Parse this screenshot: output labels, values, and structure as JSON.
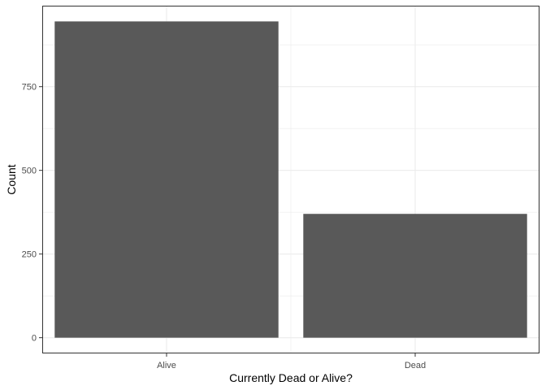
{
  "chart_data": {
    "type": "bar",
    "categories": [
      "Alive",
      "Dead"
    ],
    "values": [
      945,
      370
    ],
    "title": "",
    "xlabel": "Currently Dead or Alive?",
    "ylabel": "Count",
    "ylim": [
      -47,
      992
    ],
    "yticks": [
      0,
      250,
      500,
      750
    ],
    "ytick_labels": [
      "0",
      "250",
      "500",
      "750"
    ],
    "minor_yticks": [
      125,
      375,
      625,
      875
    ],
    "grid": true,
    "legend": "none",
    "colors": {
      "bar": "#595959",
      "grid": "#ebebeb",
      "panel_border": "#333333",
      "tick": "#333333"
    }
  }
}
